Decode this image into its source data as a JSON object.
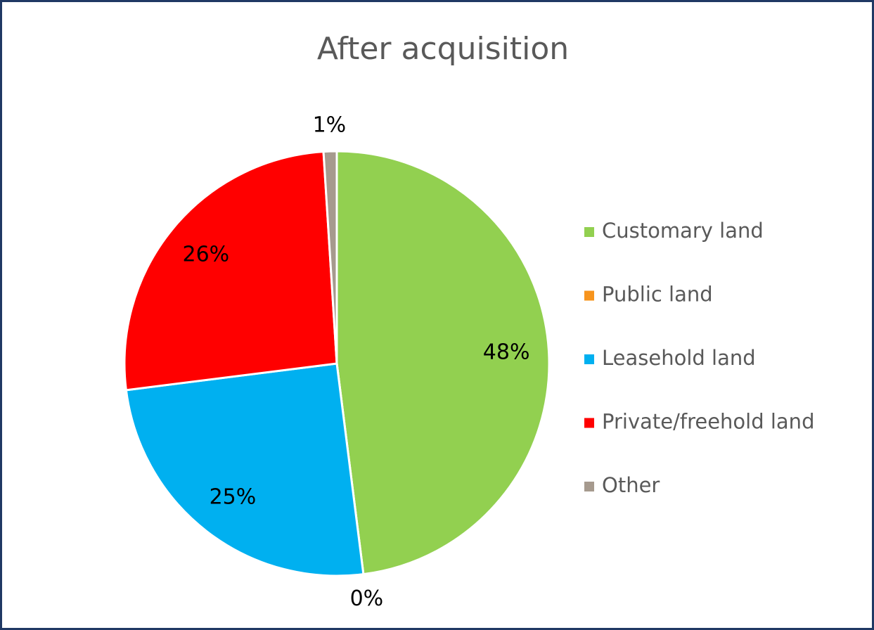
{
  "chart_data": {
    "type": "pie",
    "title": "After acquisition",
    "categories": [
      "Customary land",
      "Public land",
      "Leasehold land",
      "Private/freehold land",
      "Other"
    ],
    "values": [
      48,
      0,
      25,
      26,
      1
    ],
    "value_labels": [
      "48%",
      "0%",
      "25%",
      "26%",
      "1%"
    ],
    "colors": [
      "#92d050",
      "#f7941d",
      "#00b0f0",
      "#ff0000",
      "#a69a8e"
    ],
    "legend": "right"
  }
}
